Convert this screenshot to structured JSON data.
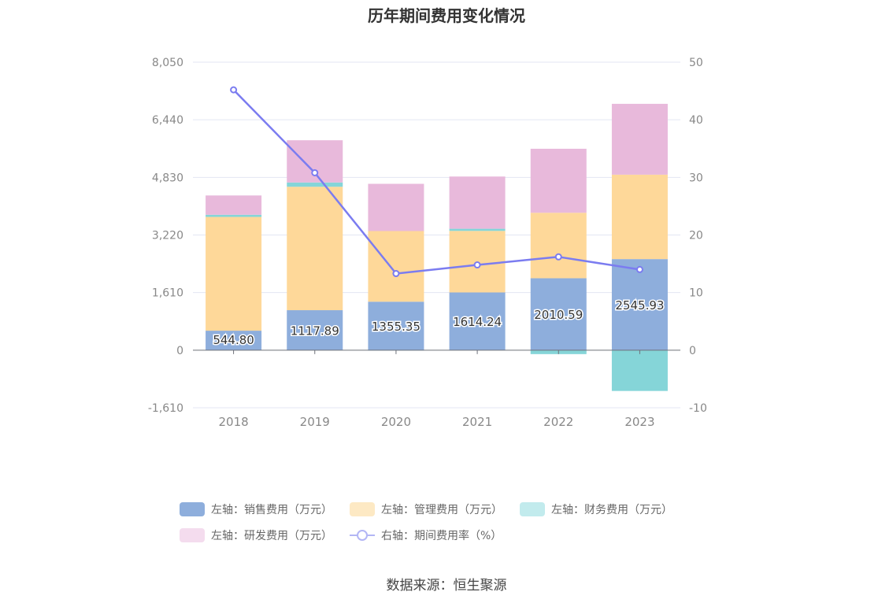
{
  "chart_data": {
    "type": "bar",
    "title": "历年期间费用变化情况",
    "categories": [
      "2018",
      "2019",
      "2020",
      "2021",
      "2022",
      "2023"
    ],
    "stacked": true,
    "y_left": {
      "ticks": [
        "8,050",
        "6,440",
        "4,830",
        "3,220",
        "1,610",
        "0",
        "-1,610"
      ],
      "tick_values": [
        8050,
        6440,
        4830,
        3220,
        1610,
        0,
        -1610
      ],
      "ylim": [
        -1610,
        8050
      ]
    },
    "y_right": {
      "ticks": [
        "50",
        "40",
        "30",
        "20",
        "10",
        "0",
        "-10"
      ],
      "tick_values": [
        50,
        40,
        30,
        20,
        10,
        0,
        -10
      ],
      "ylim": [
        -10,
        50
      ]
    },
    "series": [
      {
        "name": "左轴：销售费用（万元）",
        "type": "bar",
        "axis": "left",
        "color": "#8eaedc",
        "values": [
          544.8,
          1117.89,
          1355.35,
          1614.24,
          2010.59,
          2545.93
        ],
        "labels": [
          "544.80",
          "1117.89",
          "1355.35",
          "1614.24",
          "2010.59",
          "2545.93"
        ]
      },
      {
        "name": "左轴：管理费用（万元）",
        "type": "bar",
        "axis": "left",
        "color": "#fed899",
        "legend_color": "#fde9c4",
        "values": [
          3180,
          3450,
          1975,
          1720,
          1830,
          2360
        ]
      },
      {
        "name": "左轴：财务费用（万元）",
        "type": "bar",
        "axis": "left",
        "color": "#85d5d8",
        "legend_color": "#c2ebed",
        "values": [
          60,
          120,
          -10,
          60,
          -110,
          -1140
        ]
      },
      {
        "name": "左轴：研发费用（万元）",
        "type": "bar",
        "axis": "left",
        "color": "#e8b9db",
        "legend_color": "#f4dcee",
        "values": [
          540,
          1180,
          1320,
          1460,
          1790,
          1980
        ]
      },
      {
        "name": "右轴：期间费用率（%）",
        "type": "line",
        "axis": "right",
        "color": "#7b7cf0",
        "values": [
          45.2,
          30.8,
          13.3,
          14.8,
          16.2,
          14.0
        ]
      }
    ],
    "grid": true,
    "legend_position": "bottom"
  },
  "source": "数据来源：恒生聚源"
}
